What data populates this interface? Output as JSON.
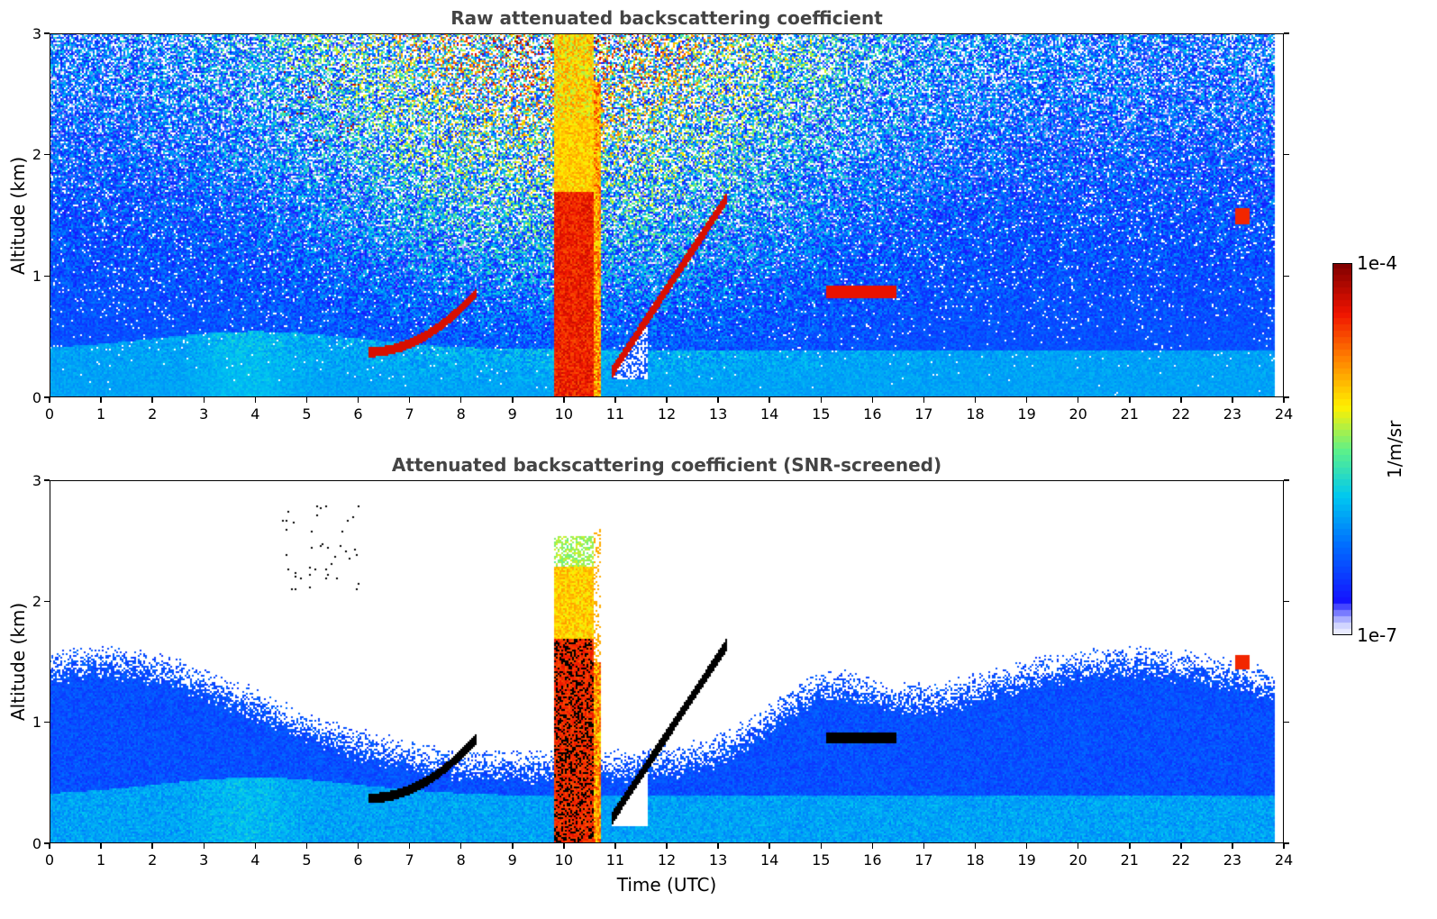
{
  "chart_data": [
    {
      "type": "heatmap",
      "title": "Raw attenuated backscattering coefficient",
      "xlabel": "",
      "ylabel": "Altitude (km)",
      "xlim": [
        0,
        24
      ],
      "ylim": [
        0,
        3
      ],
      "xticks": [
        "0",
        "1",
        "2",
        "3",
        "4",
        "5",
        "6",
        "7",
        "8",
        "9",
        "10",
        "11",
        "12",
        "13",
        "14",
        "15",
        "16",
        "17",
        "18",
        "19",
        "20",
        "21",
        "22",
        "23",
        "24"
      ],
      "yticks": [
        "0",
        "1",
        "2",
        "3"
      ],
      "screened": false,
      "features": [
        {
          "name": "rising boundary layer top",
          "time": [
            6.3,
            7.0,
            7.6,
            8.2
          ],
          "altitude_km": [
            0.38,
            0.42,
            0.55,
            0.75
          ]
        },
        {
          "name": "precipitation event",
          "time": [
            9.8,
            10.6
          ],
          "altitude_km": [
            0,
            2.9
          ]
        },
        {
          "name": "ascending layer",
          "time": [
            11.0,
            11.5,
            12.0,
            12.5,
            13.1
          ],
          "altitude_km": [
            0.2,
            0.55,
            0.85,
            1.2,
            1.6
          ]
        },
        {
          "name": "elevated layer",
          "time": [
            15.2,
            16.4
          ],
          "altitude_km": [
            0.85,
            0.95
          ]
        },
        {
          "name": "high cloud",
          "time": [
            23.0,
            23.3
          ],
          "altitude_km": [
            1.4,
            1.6
          ]
        }
      ]
    },
    {
      "type": "heatmap",
      "title": "Attenuated backscattering coefficient (SNR-screened)",
      "xlabel": "Time (UTC)",
      "ylabel": "Altitude (km)",
      "xlim": [
        0,
        24
      ],
      "ylim": [
        0,
        3
      ],
      "xticks": [
        "0",
        "1",
        "2",
        "3",
        "4",
        "5",
        "6",
        "7",
        "8",
        "9",
        "10",
        "11",
        "12",
        "13",
        "14",
        "15",
        "16",
        "17",
        "18",
        "19",
        "20",
        "21",
        "22",
        "23",
        "24"
      ],
      "yticks": [
        "0",
        "1",
        "2",
        "3"
      ],
      "screened": true
    }
  ],
  "colorbar": {
    "label": "1/m/sr",
    "max_label": "1e-4",
    "min_label": "1e-7",
    "scale": "log",
    "colormap": [
      "#ffffff",
      "#0000ff",
      "#00a0ff",
      "#00e0d0",
      "#80ff80",
      "#ffff00",
      "#ff8000",
      "#ff0000",
      "#800000"
    ]
  }
}
